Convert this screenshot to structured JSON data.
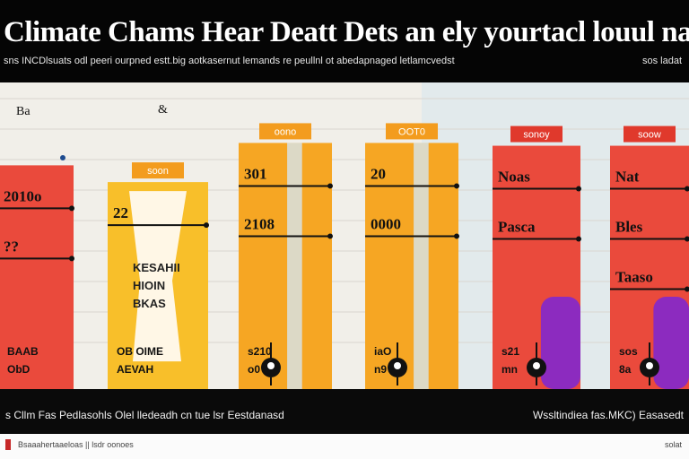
{
  "header": {
    "title": "Climate Chams Hear Deatt Dets an ely yourtacl louul naplon",
    "subtitle": "sns INCDlsuats odl peeri ourpned estt.big aotkasernut lemands re peullnl ot abedapnaged letlamcvedst",
    "subtitle_right": "sos ladat"
  },
  "footer": {
    "left": "s Cllm Fas Pedlasohls Olel lledeadh cn tue lsr Eestdanasd",
    "right": "Wssltindiea fas.MKC) Easasedt"
  },
  "bottombar": {
    "left": "Bsaaahertaaeloas || lsdr oonoes",
    "right": "solat"
  },
  "chart_data": {
    "type": "bar",
    "title": "Climate Chams Hear Deatt Dets an ely yourtacl louul naplon",
    "subtitle": "sns INCDlsuats odl peeri ourpned estt.big aotkasernut lemands re peullnl ot abedapnaged letlamcvedst",
    "xlabel": "",
    "ylabel": "",
    "ylim": [
      0,
      100
    ],
    "grid": true,
    "legend": "none",
    "colors": {
      "red": "#ea4a3c",
      "orange": "#f6a623",
      "yellow": "#f8bf2a",
      "purple": "#8c2bbf",
      "sky": "#d6e6ef"
    },
    "corner_labels": [
      "Ba",
      "&"
    ],
    "bars": [
      {
        "color": "#ea4a3c",
        "value": 80,
        "labels": [
          "2010o",
          "??"
        ],
        "bottom_labels": [
          "BAAB",
          "ObD"
        ]
      },
      {
        "color": "#f8bf2a",
        "value": 74,
        "top_tag": "soon",
        "labels": [
          "22"
        ],
        "inner_text": [
          "KESAHII",
          "HIOIN",
          "BKAS"
        ],
        "bottom_labels": [
          "OB OIME",
          "AEVAH"
        ]
      },
      {
        "color": "#f6a623",
        "value": 88,
        "top_tag": "oono",
        "labels": [
          "301",
          "2108"
        ],
        "bottom_labels": [
          "s210",
          "o0"
        ]
      },
      {
        "color": "#f6a623",
        "value": 88,
        "top_tag": "OOT0",
        "labels": [
          "20",
          "0000"
        ],
        "bottom_labels": [
          "iaO",
          "n9"
        ]
      },
      {
        "color": "#ea4a3c",
        "value": 87,
        "top_tag": "sonoy",
        "labels": [
          "Noas",
          "Pasca"
        ],
        "bottom_labels": [
          "s21",
          "mn"
        ],
        "accent_value": 33
      },
      {
        "color": "#ea4a3c",
        "value": 87,
        "top_tag": "soow",
        "labels": [
          "Nat",
          "Bles",
          "Taaso"
        ],
        "bottom_labels": [
          "sos",
          "8a"
        ],
        "accent_value": 33
      }
    ]
  }
}
